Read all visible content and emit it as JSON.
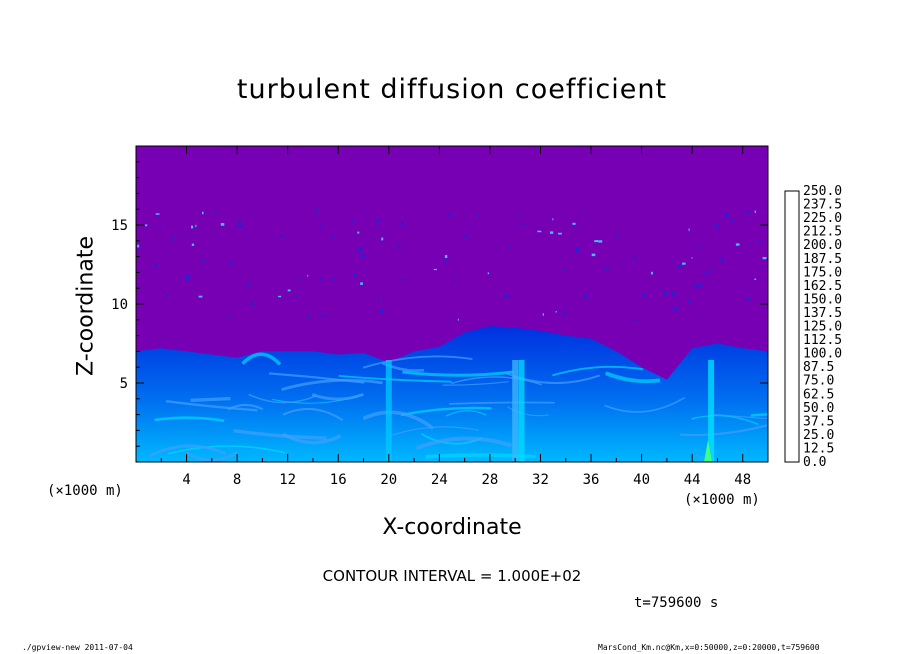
{
  "title": "turbulent diffusion coefficient",
  "footer_left": "./gpview-new   2011-07-04",
  "footer_right": "MarsCond_Km.nc@Km,x=0:50000,z=0:20000,t=759600",
  "contour_interval": "CONTOUR INTERVAL = 1.000E+02",
  "time_label": "t=759600 s",
  "x_unit_left": "(×1000 m)",
  "x_unit_right": "(×1000 m)",
  "chart_data": {
    "type": "heatmap",
    "title": "turbulent diffusion coefficient",
    "xlabel": "X-coordinate",
    "ylabel": "Z-coordinate",
    "x_unit": "(×1000 m)",
    "xlim": [
      0,
      50
    ],
    "ylim": [
      0,
      20
    ],
    "x_ticks": [
      4,
      8,
      12,
      16,
      20,
      24,
      28,
      32,
      36,
      40,
      44,
      48
    ],
    "y_ticks": [
      5,
      10,
      15
    ],
    "colorbar": {
      "labels": [
        "250.0",
        "237.5",
        "225.0",
        "212.5",
        "200.0",
        "187.5",
        "175.0",
        "162.5",
        "150.0",
        "137.5",
        "125.0",
        "112.5",
        "100.0",
        "87.5",
        "75.0",
        "62.5",
        "50.0",
        "37.5",
        "25.0",
        "12.5",
        "0.0"
      ],
      "colors": [
        "#ff8c8c",
        "#ff5050",
        "#ff2a00",
        "#ff5a00",
        "#ff8c00",
        "#ffb400",
        "#ffdc00",
        "#e6ff00",
        "#b4ff00",
        "#78ff00",
        "#3cff00",
        "#00ff3c",
        "#00ff78",
        "#00ffb4",
        "#00ffe6",
        "#00c8ff",
        "#0096ff",
        "#0050ff",
        "#0020d8",
        "#0000b4",
        "#7800b4"
      ]
    },
    "boundary_layer_top_profile": {
      "x": [
        0,
        2,
        4,
        6,
        8,
        10,
        12,
        14,
        16,
        18,
        20,
        22,
        24,
        26,
        28,
        30,
        32,
        34,
        36,
        38,
        40,
        42,
        44,
        46,
        48,
        50
      ],
      "z": [
        7.0,
        7.2,
        7.0,
        6.8,
        6.6,
        7.0,
        7.0,
        7.0,
        6.8,
        6.9,
        6.3,
        7.0,
        7.3,
        8.2,
        8.6,
        8.5,
        8.3,
        8.0,
        7.8,
        7.0,
        6.0,
        5.2,
        7.2,
        7.5,
        7.2,
        7.0
      ]
    },
    "contour_interval": 100,
    "time": "t=759600 s"
  }
}
